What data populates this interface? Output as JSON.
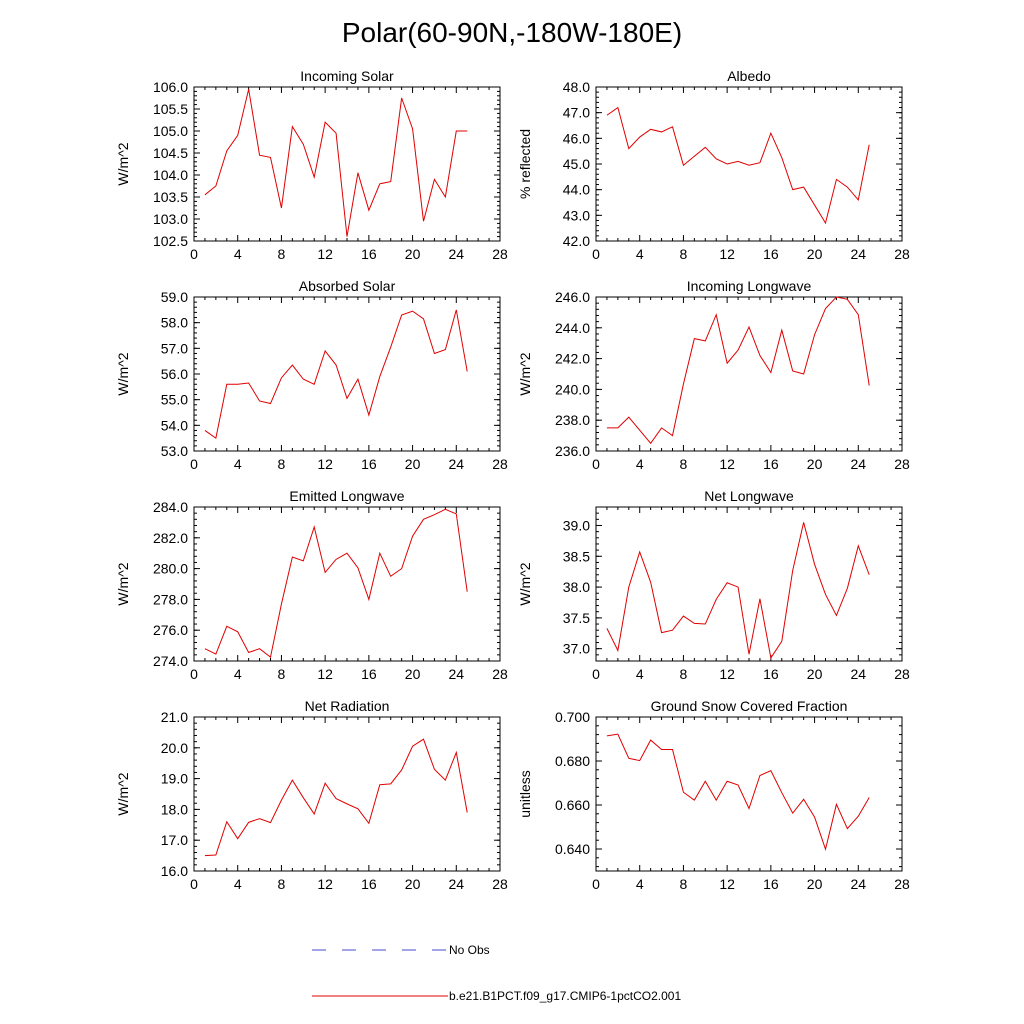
{
  "figure": {
    "title": "Polar(60-90N,-180W-180E)"
  },
  "legend": {
    "items": [
      {
        "label": "No Obs",
        "style": "dashed",
        "color": "#4a4ad0"
      },
      {
        "label": "b.e21.B1PCT.f09_g17.CMIP6-1pctCO2.001",
        "style": "solid",
        "color": "#e00000"
      }
    ]
  },
  "chart_data": [
    {
      "type": "line",
      "title": "Incoming Solar",
      "xlabel": "",
      "ylabel": "W/m^2",
      "xlim": [
        0,
        28
      ],
      "ylim": [
        102.5,
        106.0
      ],
      "xticks": [
        0,
        4,
        8,
        12,
        16,
        20,
        24,
        28
      ],
      "yticks": [
        102.5,
        103.0,
        103.5,
        104.0,
        104.5,
        105.0,
        105.5,
        106.0
      ],
      "ytick_labels": [
        "102.5",
        "103.0",
        "103.5",
        "104.0",
        "104.5",
        "105.0",
        "105.5",
        "106.0"
      ],
      "grid": false,
      "x": [
        1,
        2,
        3,
        4,
        5,
        6,
        7,
        8,
        9,
        10,
        11,
        12,
        13,
        14,
        15,
        16,
        17,
        18,
        19,
        20,
        21,
        22,
        23,
        24,
        25
      ],
      "series": [
        {
          "name": "b.e21.B1PCT.f09_g17.CMIP6-1pctCO2.001",
          "color": "#e00000",
          "values": [
            103.55,
            103.75,
            104.55,
            104.9,
            105.95,
            104.45,
            104.4,
            103.25,
            105.1,
            104.7,
            103.95,
            105.2,
            104.95,
            102.6,
            104.05,
            103.2,
            103.8,
            103.85,
            105.75,
            105.05,
            102.95,
            103.9,
            103.5,
            105.0,
            105.0
          ]
        }
      ]
    },
    {
      "type": "line",
      "title": "Albedo",
      "xlabel": "",
      "ylabel": "% reflected",
      "xlim": [
        0,
        28
      ],
      "ylim": [
        42.0,
        48.0
      ],
      "xticks": [
        0,
        4,
        8,
        12,
        16,
        20,
        24,
        28
      ],
      "yticks": [
        42,
        43,
        44,
        45,
        46,
        47,
        48
      ],
      "ytick_labels": [
        "42.0",
        "43.0",
        "44.0",
        "45.0",
        "46.0",
        "47.0",
        "48.0"
      ],
      "grid": false,
      "x": [
        1,
        2,
        3,
        4,
        5,
        6,
        7,
        8,
        9,
        10,
        11,
        12,
        13,
        14,
        15,
        16,
        17,
        18,
        19,
        20,
        21,
        22,
        23,
        24,
        25
      ],
      "series": [
        {
          "name": "b.e21.B1PCT.f09_g17.CMIP6-1pctCO2.001",
          "color": "#e00000",
          "values": [
            46.9,
            47.2,
            45.6,
            46.05,
            46.35,
            46.25,
            46.45,
            44.95,
            45.3,
            45.65,
            45.2,
            45.0,
            45.1,
            44.95,
            45.05,
            46.2,
            45.25,
            44.0,
            44.1,
            43.4,
            42.7,
            44.4,
            44.1,
            43.6,
            45.75
          ]
        }
      ]
    },
    {
      "type": "line",
      "title": "Absorbed Solar",
      "xlabel": "",
      "ylabel": "W/m^2",
      "xlim": [
        0,
        28
      ],
      "ylim": [
        53.0,
        59.0
      ],
      "xticks": [
        0,
        4,
        8,
        12,
        16,
        20,
        24,
        28
      ],
      "yticks": [
        53,
        54,
        55,
        56,
        57,
        58,
        59
      ],
      "ytick_labels": [
        "53.0",
        "54.0",
        "55.0",
        "56.0",
        "57.0",
        "58.0",
        "59.0"
      ],
      "grid": false,
      "x": [
        1,
        2,
        3,
        4,
        5,
        6,
        7,
        8,
        9,
        10,
        11,
        12,
        13,
        14,
        15,
        16,
        17,
        18,
        19,
        20,
        21,
        22,
        23,
        24,
        25
      ],
      "series": [
        {
          "name": "b.e21.B1PCT.f09_g17.CMIP6-1pctCO2.001",
          "color": "#e00000",
          "values": [
            53.8,
            53.5,
            55.6,
            55.6,
            55.65,
            54.95,
            54.85,
            55.85,
            56.35,
            55.8,
            55.6,
            56.9,
            56.35,
            55.05,
            55.8,
            54.4,
            55.9,
            57.05,
            58.3,
            58.45,
            58.15,
            56.8,
            56.95,
            58.5,
            56.1
          ]
        }
      ]
    },
    {
      "type": "line",
      "title": "Incoming Longwave",
      "xlabel": "",
      "ylabel": "W/m^2",
      "xlim": [
        0,
        28
      ],
      "ylim": [
        236.0,
        246.0
      ],
      "xticks": [
        0,
        4,
        8,
        12,
        16,
        20,
        24,
        28
      ],
      "yticks": [
        236,
        238,
        240,
        242,
        244,
        246
      ],
      "ytick_labels": [
        "236.0",
        "238.0",
        "240.0",
        "242.0",
        "244.0",
        "246.0"
      ],
      "grid": false,
      "x": [
        1,
        2,
        3,
        4,
        5,
        6,
        7,
        8,
        9,
        10,
        11,
        12,
        13,
        14,
        15,
        16,
        17,
        18,
        19,
        20,
        21,
        22,
        23,
        24,
        25
      ],
      "series": [
        {
          "name": "b.e21.B1PCT.f09_g17.CMIP6-1pctCO2.001",
          "color": "#e00000",
          "values": [
            237.5,
            237.5,
            238.2,
            237.35,
            236.5,
            237.5,
            237.0,
            240.35,
            243.3,
            243.15,
            244.85,
            241.7,
            242.55,
            244.05,
            242.2,
            241.1,
            243.85,
            241.2,
            241.0,
            243.55,
            245.25,
            246.0,
            245.85,
            244.85,
            240.25
          ]
        }
      ]
    },
    {
      "type": "line",
      "title": "Emitted Longwave",
      "xlabel": "",
      "ylabel": "W/m^2",
      "xlim": [
        0,
        28
      ],
      "ylim": [
        274.0,
        284.0
      ],
      "xticks": [
        0,
        4,
        8,
        12,
        16,
        20,
        24,
        28
      ],
      "yticks": [
        274,
        276,
        278,
        280,
        282,
        284
      ],
      "ytick_labels": [
        "274.0",
        "276.0",
        "278.0",
        "280.0",
        "282.0",
        "284.0"
      ],
      "grid": false,
      "x": [
        1,
        2,
        3,
        4,
        5,
        6,
        7,
        8,
        9,
        10,
        11,
        12,
        13,
        14,
        15,
        16,
        17,
        18,
        19,
        20,
        21,
        22,
        23,
        24,
        25
      ],
      "series": [
        {
          "name": "b.e21.B1PCT.f09_g17.CMIP6-1pctCO2.001",
          "color": "#e00000",
          "values": [
            274.8,
            274.45,
            276.25,
            275.9,
            274.55,
            274.8,
            274.25,
            277.7,
            280.75,
            280.5,
            282.7,
            279.75,
            280.6,
            281.0,
            280.05,
            278.0,
            281.0,
            279.5,
            280.0,
            282.1,
            283.2,
            283.5,
            283.85,
            283.55,
            278.5
          ]
        }
      ]
    },
    {
      "type": "line",
      "title": "Net Longwave",
      "xlabel": "",
      "ylabel": "W/m^2",
      "xlim": [
        0,
        28
      ],
      "ylim": [
        36.8,
        39.3
      ],
      "xticks": [
        0,
        4,
        8,
        12,
        16,
        20,
        24,
        28
      ],
      "yticks": [
        37.0,
        37.5,
        38.0,
        38.5,
        39.0
      ],
      "ytick_labels": [
        "37.0",
        "37.5",
        "38.0",
        "38.5",
        "39.0"
      ],
      "grid": false,
      "x": [
        1,
        2,
        3,
        4,
        5,
        6,
        7,
        8,
        9,
        10,
        11,
        12,
        13,
        14,
        15,
        16,
        17,
        18,
        19,
        20,
        21,
        22,
        23,
        24,
        25
      ],
      "series": [
        {
          "name": "b.e21.B1PCT.f09_g17.CMIP6-1pctCO2.001",
          "color": "#e00000",
          "values": [
            37.33,
            36.97,
            38.0,
            38.57,
            38.08,
            37.26,
            37.3,
            37.53,
            37.41,
            37.4,
            37.8,
            38.07,
            38.0,
            36.91,
            37.81,
            36.85,
            37.12,
            38.27,
            39.05,
            38.37,
            37.88,
            37.54,
            37.98,
            38.67,
            38.2
          ]
        }
      ]
    },
    {
      "type": "line",
      "title": "Net Radiation",
      "xlabel": "",
      "ylabel": "W/m^2",
      "xlim": [
        0,
        28
      ],
      "ylim": [
        16.0,
        21.0
      ],
      "xticks": [
        0,
        4,
        8,
        12,
        16,
        20,
        24,
        28
      ],
      "yticks": [
        16,
        17,
        18,
        19,
        20,
        21
      ],
      "ytick_labels": [
        "16.0",
        "17.0",
        "18.0",
        "19.0",
        "20.0",
        "21.0"
      ],
      "grid": false,
      "x": [
        1,
        2,
        3,
        4,
        5,
        6,
        7,
        8,
        9,
        10,
        11,
        12,
        13,
        14,
        15,
        16,
        17,
        18,
        19,
        20,
        21,
        22,
        23,
        24,
        25
      ],
      "series": [
        {
          "name": "b.e21.B1PCT.f09_g17.CMIP6-1pctCO2.001",
          "color": "#e00000",
          "values": [
            16.5,
            16.52,
            17.6,
            17.05,
            17.58,
            17.7,
            17.57,
            18.3,
            18.95,
            18.38,
            17.85,
            18.85,
            18.35,
            18.18,
            18.02,
            17.55,
            18.8,
            18.83,
            19.28,
            20.05,
            20.28,
            19.3,
            18.95,
            19.85,
            17.9
          ]
        }
      ]
    },
    {
      "type": "line",
      "title": "Ground Snow Covered Fraction",
      "xlabel": "",
      "ylabel": "unitless",
      "xlim": [
        0,
        28
      ],
      "ylim": [
        0.63,
        0.7
      ],
      "xticks": [
        0,
        4,
        8,
        12,
        16,
        20,
        24,
        28
      ],
      "yticks": [
        0.64,
        0.66,
        0.68,
        0.7
      ],
      "ytick_labels": [
        "0.640",
        "0.660",
        "0.680",
        "0.700"
      ],
      "grid": false,
      "x": [
        1,
        2,
        3,
        4,
        5,
        6,
        7,
        8,
        9,
        10,
        11,
        12,
        13,
        14,
        15,
        16,
        17,
        18,
        19,
        20,
        21,
        22,
        23,
        24,
        25
      ],
      "series": [
        {
          "name": "b.e21.B1PCT.f09_g17.CMIP6-1pctCO2.001",
          "color": "#e00000",
          "values": [
            0.6914,
            0.6922,
            0.6812,
            0.6802,
            0.6895,
            0.6852,
            0.6852,
            0.6658,
            0.6622,
            0.6708,
            0.6622,
            0.6708,
            0.6691,
            0.6584,
            0.6734,
            0.6756,
            0.6656,
            0.6563,
            0.6626,
            0.6545,
            0.6399,
            0.6603,
            0.6493,
            0.6549,
            0.6634
          ]
        }
      ]
    }
  ]
}
